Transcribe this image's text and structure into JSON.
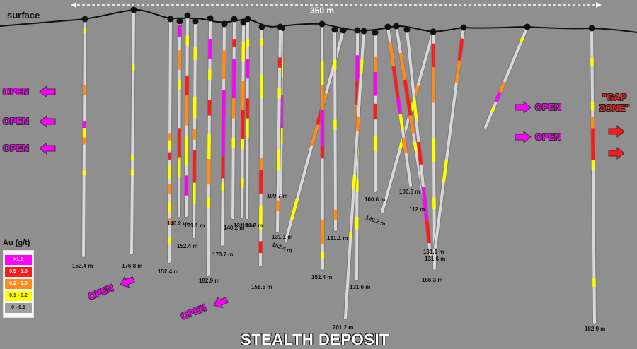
{
  "title": "STEALTH DEPOSIT",
  "surface_label": "surface",
  "scale_label": "350 m",
  "gap_zone": {
    "line1": "\"GAP",
    "line2": "ZONE\""
  },
  "open_label": "OPEN",
  "legend": {
    "title": "Au (g/t)",
    "items": [
      {
        "label": ">1.0",
        "color": "#ff00ff"
      },
      {
        "label": "0.5 - 1.0",
        "color": "#ff1a1a"
      },
      {
        "label": "0.2 - 0.5",
        "color": "#ff8c1a"
      },
      {
        "label": "0.1 - 0.2",
        "color": "#ffff00"
      },
      {
        "label": "0 - 0.1",
        "color": "#a0a0a0"
      }
    ]
  },
  "depth_labels": [
    "152.4 m",
    "176.8 m",
    "152.4 m",
    "140.2 m",
    "131.1 m",
    "152.4 m",
    "182.9 m",
    "170.7 m",
    "140.2 m",
    "131.1 m",
    "140.2 m",
    "109.7 m",
    "158.5 m",
    "131.1 m",
    "152.4 m",
    "152.4 m",
    "131.1 m",
    "131.6 m",
    "201.2 m",
    "100.6 m",
    "140.2 m",
    "100.6 m",
    "112 m",
    "131.1 m",
    "131.6 m",
    "166.3 m",
    "182.9 m"
  ],
  "colors": {
    "background": "#8f8f8f",
    "hole": "#d8d8d8",
    "surface_line": "#111111",
    "open_arrow": "#ff00ff",
    "gap_arrow": "#ff1a1a"
  }
}
